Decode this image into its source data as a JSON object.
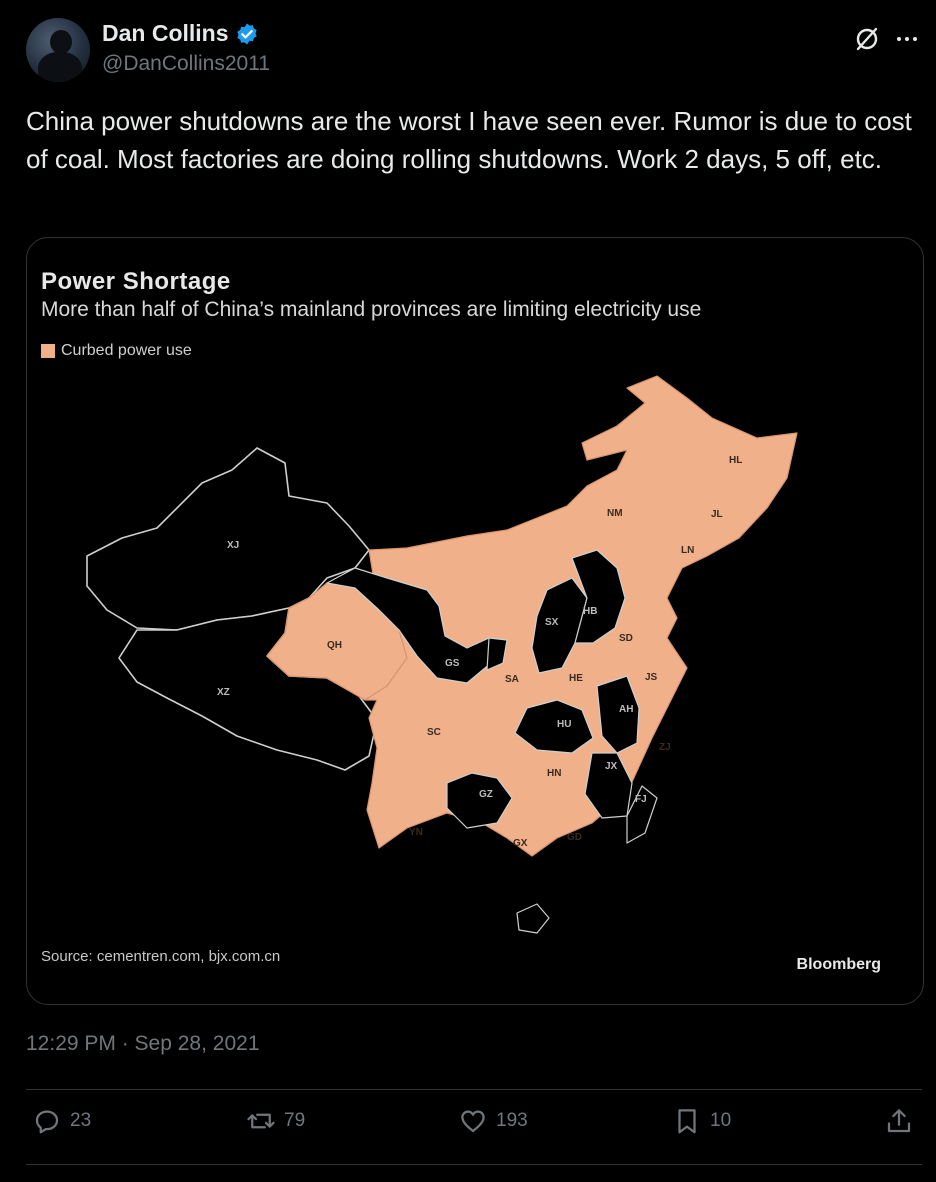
{
  "author": {
    "display_name": "Dan Collins",
    "handle": "@DanCollins2011",
    "verified": true
  },
  "tweet": {
    "text": "China power shutdowns are the worst I have seen ever. Rumor is due to cost of coal. Most factories are doing rolling shutdowns. Work 2 days, 5 off, etc.",
    "timestamp": "12:29 PM · Sep 28, 2021"
  },
  "media": {
    "title": "Power Shortage",
    "subtitle": "More than half of China’s mainland provinces are limiting electricity use",
    "legend_label": "Curbed power use",
    "source": "Source: cementren.com, bjx.com.cn",
    "brand": "Bloomberg",
    "highlight_color": "#f0b08a",
    "province_labels": [
      "XJ",
      "XZ",
      "QH",
      "GS",
      "SA",
      "SC",
      "YN",
      "GZ",
      "GX",
      "GD",
      "HN",
      "HU",
      "HE",
      "SX",
      "HB",
      "SD",
      "JS",
      "AH",
      "ZJ",
      "JX",
      "FJ",
      "NM",
      "HL",
      "JL",
      "LN"
    ]
  },
  "actions": {
    "replies": "23",
    "reposts": "79",
    "likes": "193",
    "bookmarks": "10"
  },
  "colors": {
    "background": "#000000",
    "text": "#e7e9ea",
    "muted": "#71767b",
    "verified_badge": "#1d9bf0",
    "border": "#2f3336"
  }
}
